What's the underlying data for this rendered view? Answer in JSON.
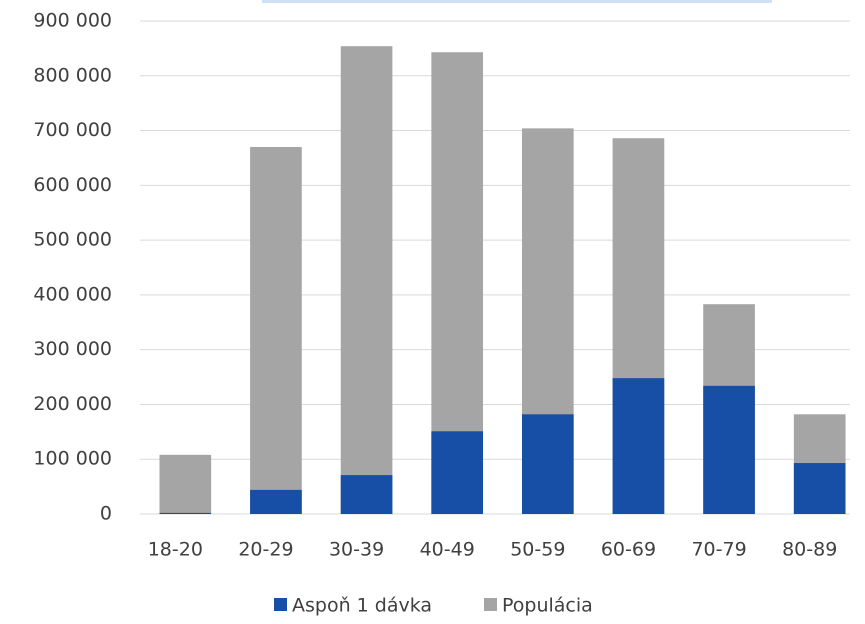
{
  "chart_data": {
    "type": "bar",
    "categories": [
      "18-20",
      "20-29",
      "30-39",
      "40-49",
      "50-59",
      "60-69",
      "70-79",
      "80-89"
    ],
    "series": [
      {
        "name": "Aspoň 1 dávka",
        "color": "#174ea6",
        "values": [
          2000,
          44000,
          71000,
          151000,
          182000,
          248000,
          234000,
          93000
        ]
      },
      {
        "name": "Populácia",
        "color": "#a5a5a5",
        "values": [
          108000,
          670000,
          854000,
          843000,
          704000,
          686000,
          383000,
          182000
        ]
      }
    ],
    "overlap": true,
    "ylim": [
      0,
      900000
    ],
    "yticks": [
      0,
      {
        "value": 100000,
        "label": "100 000"
      },
      {
        "value": 200000,
        "label": "200 000"
      },
      {
        "value": 300000,
        "label": "300 000"
      },
      {
        "value": 400000,
        "label": "400 000"
      },
      {
        "value": 500000,
        "label": "500 000"
      },
      {
        "value": 600000,
        "label": "600 000"
      },
      {
        "value": 700000,
        "label": "700 000"
      },
      {
        "value": 800000,
        "label": "800 000"
      },
      {
        "value": 900000,
        "label": "900 000"
      }
    ],
    "grid": true,
    "legend": "bottom"
  }
}
